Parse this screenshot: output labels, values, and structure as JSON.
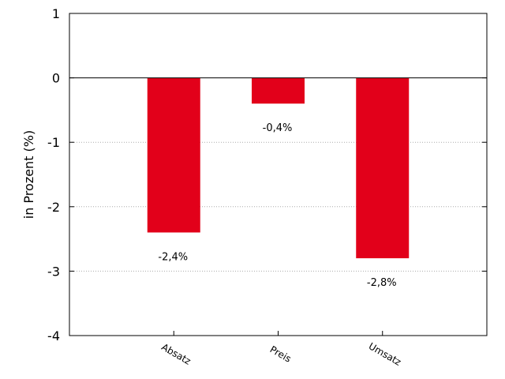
{
  "chart_data": {
    "type": "bar",
    "title": "",
    "xlabel": "",
    "ylabel": "in Prozent (%)",
    "categories": [
      "Absatz",
      "Preis",
      "Umsatz"
    ],
    "values": [
      -2.4,
      -0.4,
      -2.8
    ],
    "data_labels": [
      "-2,4%",
      "-0,4%",
      "-2,8%"
    ],
    "ylim": [
      -4,
      1
    ],
    "yticks": [
      1,
      0,
      -1,
      -2,
      -3,
      -4
    ],
    "grid": true,
    "bar_color": "#e2001a"
  }
}
